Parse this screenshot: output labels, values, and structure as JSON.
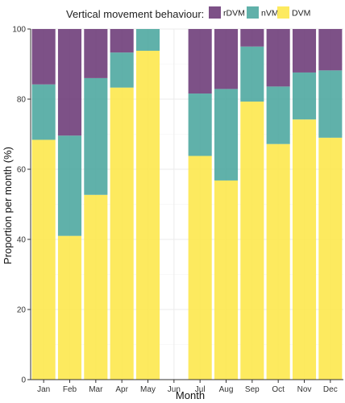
{
  "chart_data": {
    "type": "bar",
    "stacked": true,
    "legend_title": "Vertical movement behaviour:",
    "legend_position": "top",
    "xlabel": "Month",
    "ylabel": "Proportion per month (%)",
    "ylim": [
      0,
      100
    ],
    "yticks": [
      0,
      20,
      40,
      60,
      80,
      100
    ],
    "grid": true,
    "categories": [
      "Jan",
      "Feb",
      "Mar",
      "Apr",
      "May",
      "Jun",
      "Jul",
      "Aug",
      "Sep",
      "Oct",
      "Nov",
      "Dec"
    ],
    "series": [
      {
        "name": "DVM",
        "color": "#fde84e",
        "values": [
          68.4,
          41.0,
          52.7,
          83.3,
          93.8,
          null,
          63.8,
          56.8,
          79.3,
          67.2,
          74.2,
          69.0
        ]
      },
      {
        "name": "nVM",
        "color": "#4fa9a1",
        "values": [
          15.8,
          28.6,
          33.3,
          10.0,
          6.2,
          null,
          17.8,
          26.1,
          15.7,
          16.4,
          13.4,
          19.2
        ]
      },
      {
        "name": "rDVM",
        "color": "#6f3e7a",
        "values": [
          15.8,
          30.4,
          14.0,
          6.7,
          0,
          null,
          18.4,
          17.1,
          5.0,
          16.4,
          12.4,
          11.8
        ]
      }
    ],
    "legend_order": [
      "rDVM",
      "nVM",
      "DVM"
    ]
  }
}
